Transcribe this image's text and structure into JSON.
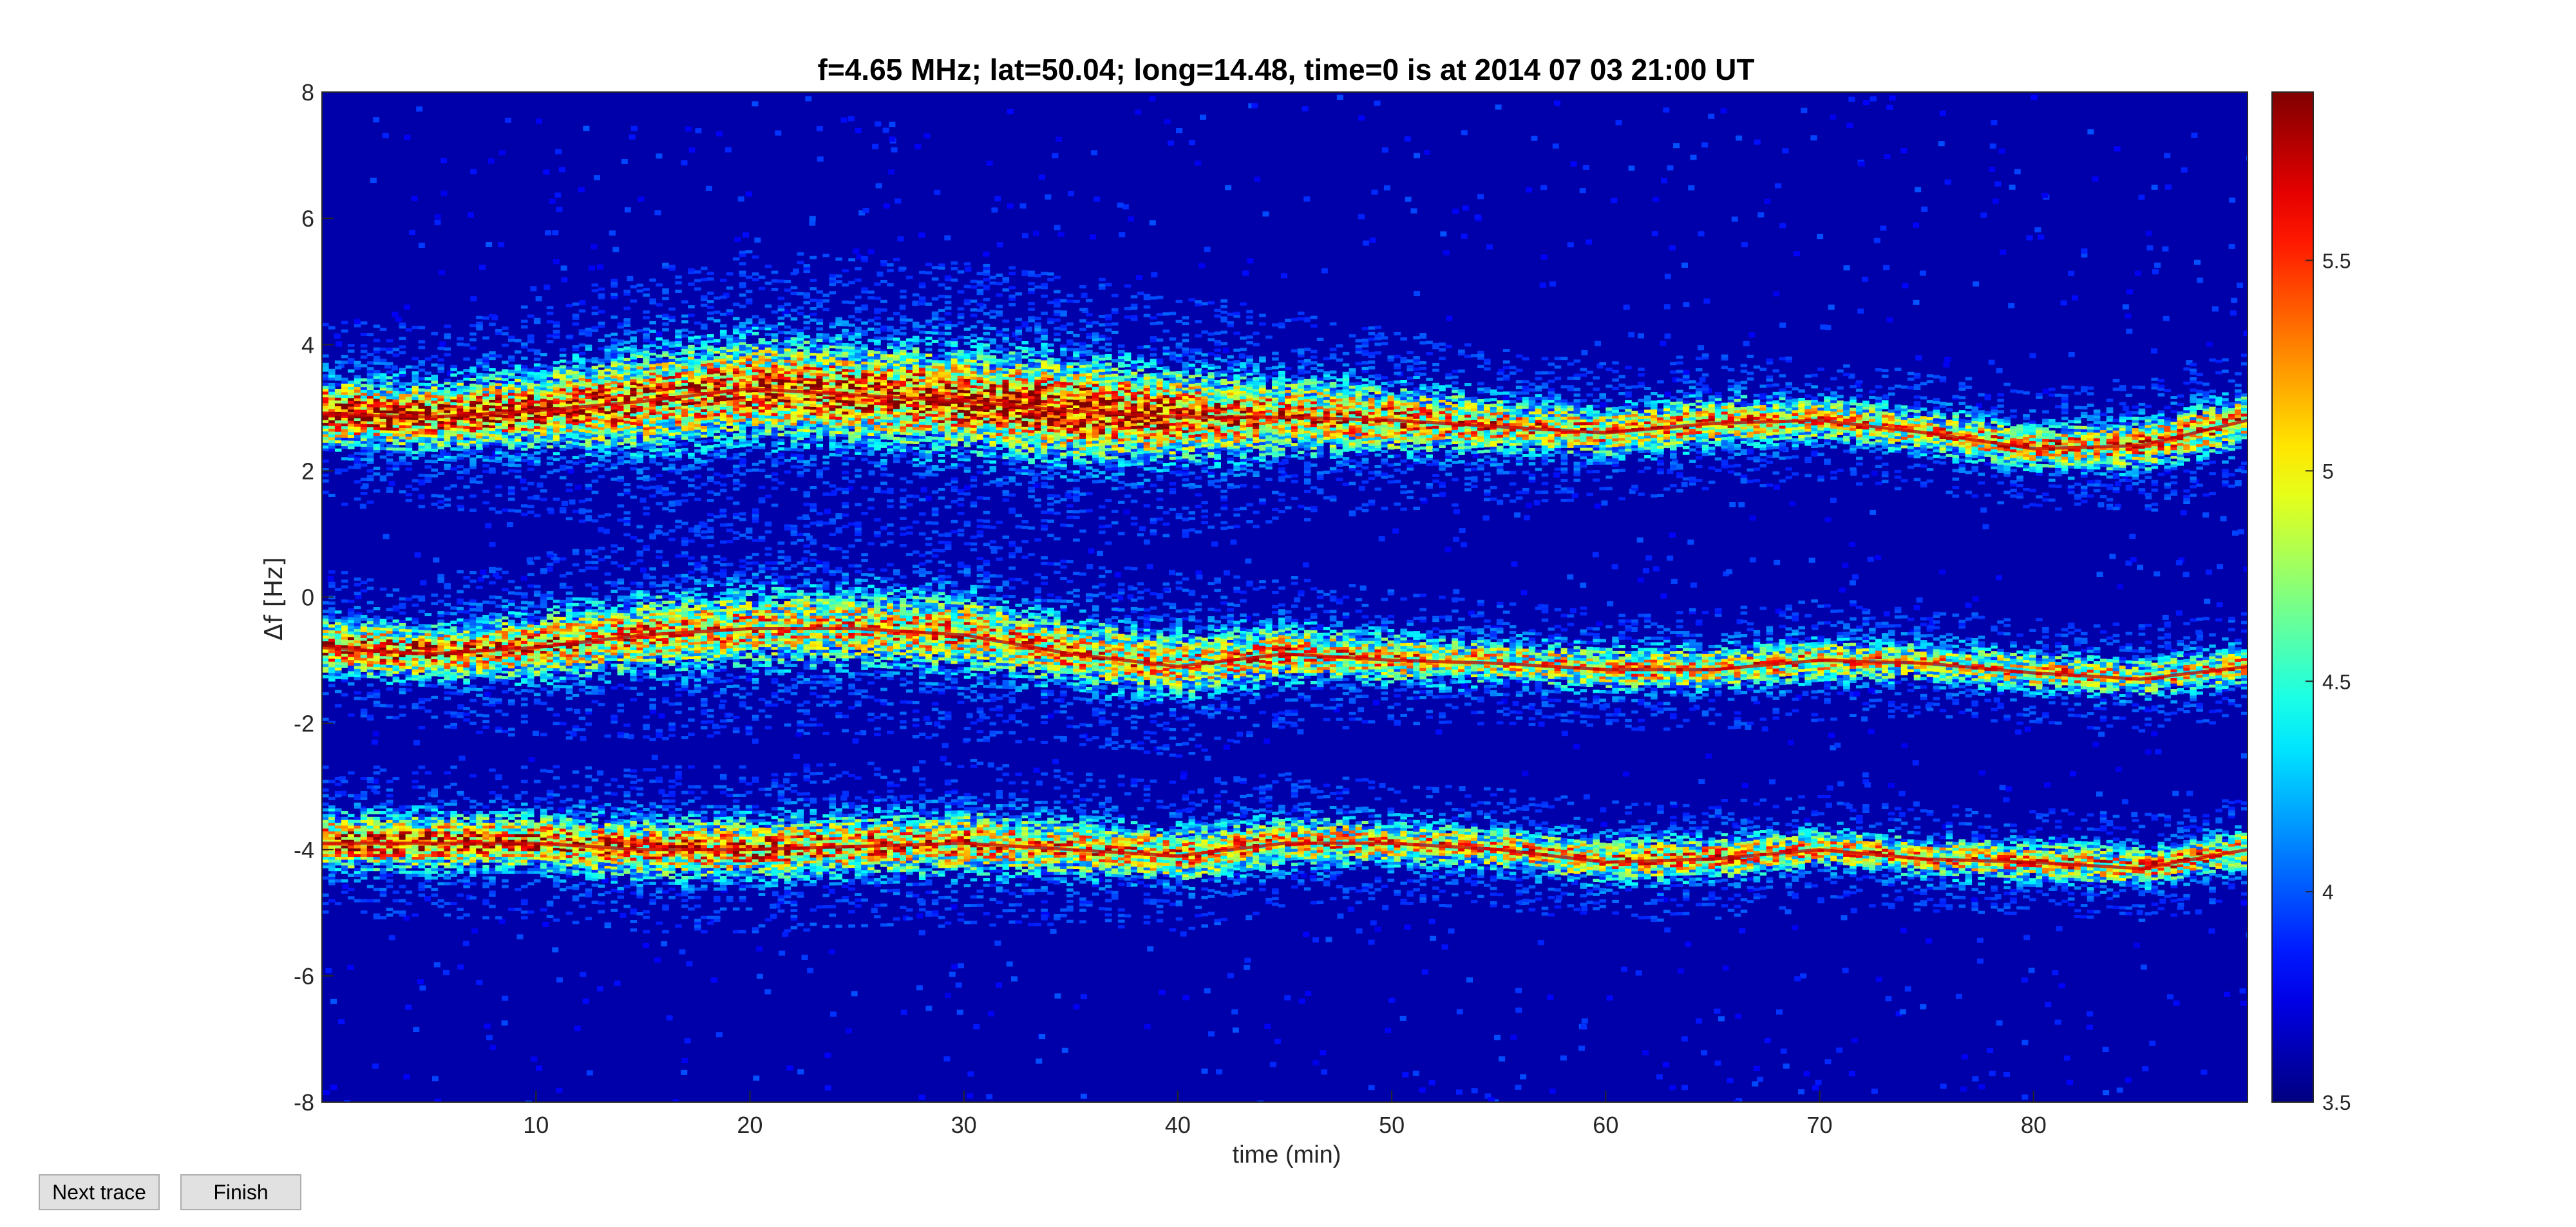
{
  "buttons": {
    "next_trace": "Next trace",
    "finish": "Finish"
  },
  "chart_data": {
    "type": "heatmap",
    "title": "f=4.65 MHz;  lat=50.04; long=14.48, time=0 is at 2014 07 03 21:00 UT",
    "xlabel": "time (min)",
    "ylabel": "Δf [Hz]",
    "xlim": [
      0,
      90
    ],
    "ylim": [
      -8,
      8
    ],
    "xticks": [
      10,
      20,
      30,
      40,
      50,
      60,
      70,
      80
    ],
    "yticks": [
      8,
      6,
      4,
      2,
      0,
      -2,
      -4,
      -6,
      -8
    ],
    "colorbar": {
      "limits": [
        3.5,
        5.9
      ],
      "ticks": [
        5.5,
        5,
        4.5,
        4,
        3.5
      ],
      "colormap": "jet"
    },
    "grid": false,
    "background_value": 3.6,
    "traces": [
      {
        "x": [
          0,
          5,
          10,
          15,
          20,
          25,
          30,
          35,
          40,
          45,
          50,
          55,
          60,
          65,
          70,
          75,
          80,
          85,
          90
        ],
        "df": [
          2.9,
          2.85,
          2.95,
          3.1,
          3.3,
          3.2,
          3.1,
          2.95,
          2.85,
          2.85,
          2.8,
          2.7,
          2.6,
          2.75,
          2.8,
          2.6,
          2.35,
          2.4,
          2.8
        ],
        "width": [
          0.6,
          0.6,
          0.7,
          0.9,
          0.9,
          0.9,
          0.9,
          0.9,
          0.8,
          0.7,
          0.6,
          0.5,
          0.45,
          0.45,
          0.4,
          0.4,
          0.4,
          0.45,
          0.45
        ],
        "peak": [
          5.8,
          5.7,
          5.6,
          5.5,
          5.6,
          5.6,
          5.7,
          5.9,
          5.6,
          5.4,
          5.4,
          5.3,
          5.3,
          5.3,
          5.2,
          5.2,
          5.3,
          5.4,
          5.4
        ]
      },
      {
        "x": [
          0,
          5,
          10,
          15,
          20,
          25,
          30,
          35,
          40,
          45,
          50,
          55,
          60,
          65,
          70,
          75,
          80,
          85,
          90
        ],
        "df": [
          -0.8,
          -0.9,
          -0.8,
          -0.6,
          -0.5,
          -0.5,
          -0.6,
          -0.9,
          -1.1,
          -0.9,
          -1.0,
          -1.05,
          -1.15,
          -1.15,
          -1.0,
          -1.05,
          -1.2,
          -1.3,
          -1.1
        ],
        "width": [
          0.5,
          0.5,
          0.6,
          0.7,
          0.7,
          0.7,
          0.7,
          0.6,
          0.6,
          0.5,
          0.45,
          0.4,
          0.4,
          0.4,
          0.4,
          0.35,
          0.35,
          0.35,
          0.35
        ],
        "peak": [
          5.6,
          5.5,
          5.4,
          5.3,
          5.2,
          5.2,
          5.3,
          5.3,
          5.2,
          5.3,
          5.2,
          5.1,
          5.2,
          5.2,
          5.2,
          5.1,
          5.2,
          5.1,
          5.2
        ]
      },
      {
        "x": [
          0,
          5,
          10,
          15,
          20,
          25,
          30,
          35,
          40,
          45,
          50,
          55,
          60,
          65,
          70,
          75,
          80,
          85,
          90
        ],
        "df": [
          -3.9,
          -3.9,
          -3.9,
          -4.0,
          -4.0,
          -3.95,
          -3.9,
          -4.0,
          -4.1,
          -3.9,
          -3.9,
          -4.0,
          -4.2,
          -4.15,
          -4.0,
          -4.15,
          -4.2,
          -4.3,
          -4.0
        ],
        "width": [
          0.5,
          0.5,
          0.5,
          0.55,
          0.55,
          0.55,
          0.55,
          0.5,
          0.5,
          0.45,
          0.4,
          0.4,
          0.4,
          0.4,
          0.35,
          0.35,
          0.35,
          0.35,
          0.35
        ],
        "peak": [
          5.7,
          5.6,
          5.5,
          5.4,
          5.5,
          5.4,
          5.4,
          5.3,
          5.3,
          5.2,
          5.2,
          5.2,
          5.3,
          5.3,
          5.2,
          5.2,
          5.3,
          5.3,
          5.3
        ]
      }
    ]
  }
}
